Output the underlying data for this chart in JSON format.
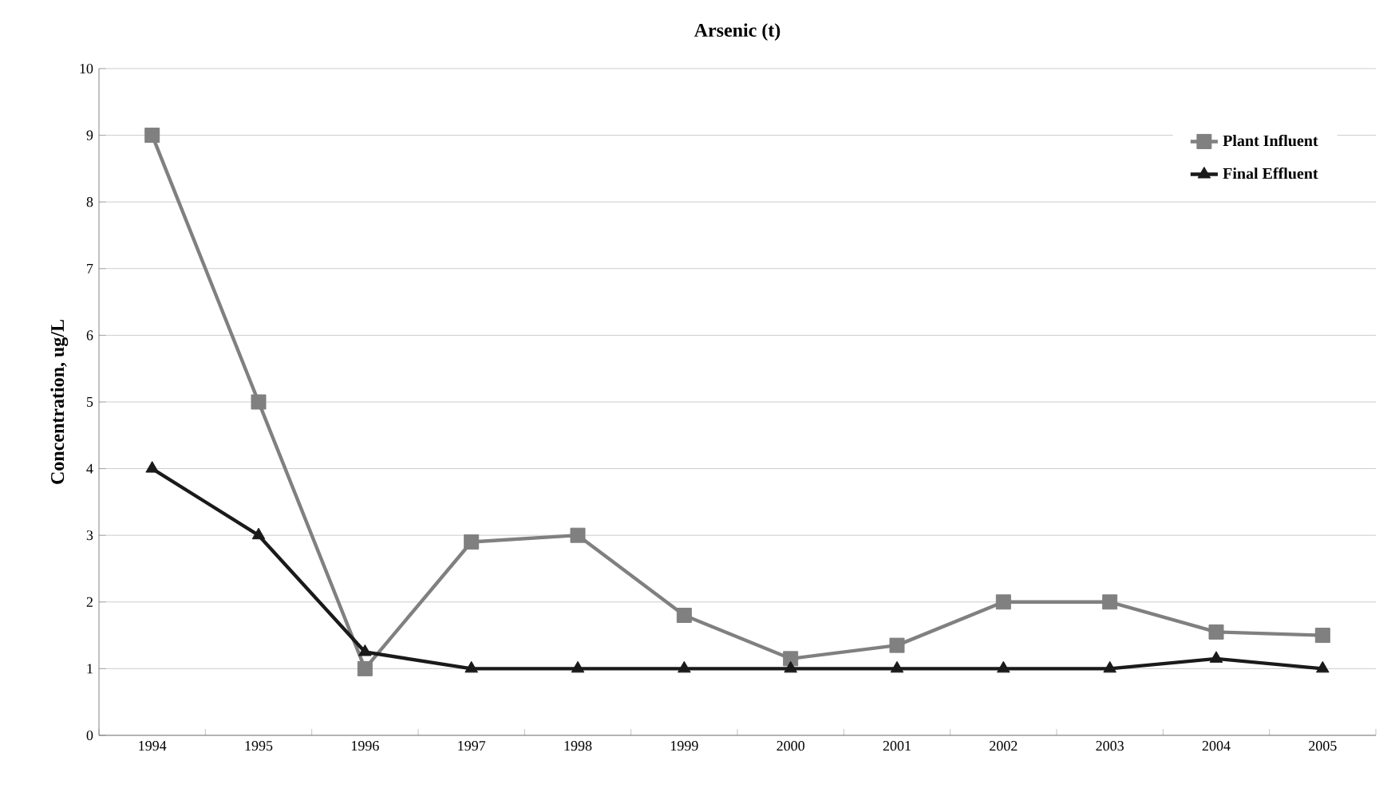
{
  "chart_data": {
    "type": "line",
    "title": "Arsenic (t)",
    "ylabel": "Concentration, ug/L",
    "categories": [
      "1994",
      "1995",
      "1996",
      "1997",
      "1998",
      "1999",
      "2000",
      "2001",
      "2002",
      "2003",
      "2004",
      "2005"
    ],
    "series": [
      {
        "name": "Plant Influent",
        "color": "#808080",
        "marker": "square",
        "values": [
          9,
          5,
          1,
          2.9,
          3,
          1.8,
          1.15,
          1.35,
          2,
          2,
          1.55,
          1.5
        ]
      },
      {
        "name": "Final Effluent",
        "color": "#1a1a1a",
        "marker": "triangle",
        "values": [
          4,
          3,
          1.25,
          1,
          1,
          1,
          1,
          1,
          1,
          1,
          1.15,
          1
        ]
      }
    ],
    "ylim": [
      0,
      10
    ],
    "yticks": [
      0,
      1,
      2,
      3,
      4,
      5,
      6,
      7,
      8,
      9,
      10
    ],
    "grid": "y",
    "legend": "top right"
  }
}
